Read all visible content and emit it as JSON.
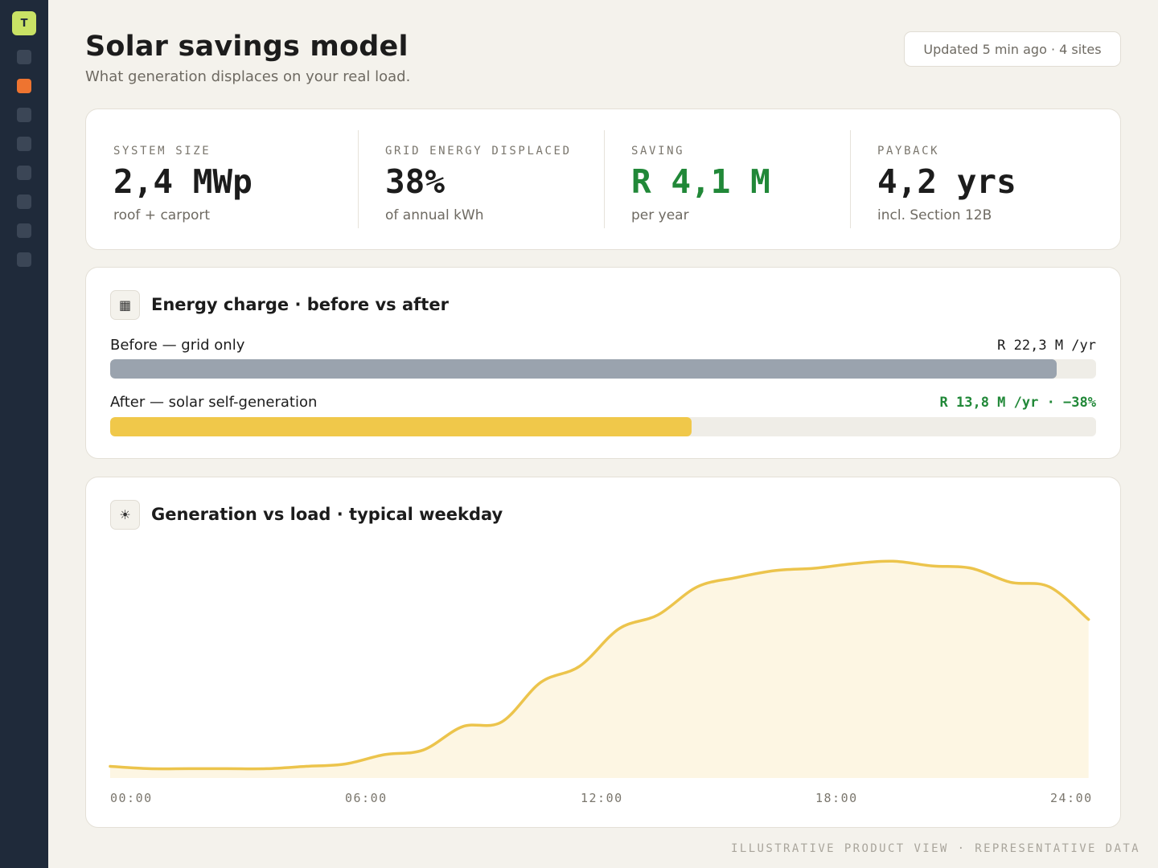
{
  "app": {
    "logo_letter": "T"
  },
  "sidebar": {
    "items": [
      {
        "name": "nav-item-1",
        "active": false
      },
      {
        "name": "nav-item-2",
        "active": true
      },
      {
        "name": "nav-item-3",
        "active": false
      },
      {
        "name": "nav-item-4",
        "active": false
      },
      {
        "name": "nav-item-5",
        "active": false
      },
      {
        "name": "nav-item-6",
        "active": false
      },
      {
        "name": "nav-item-7",
        "active": false
      },
      {
        "name": "nav-item-8",
        "active": false
      }
    ]
  },
  "header": {
    "title": "Solar savings model",
    "subtitle": "What generation displaces on your real load.",
    "status": "Updated 5 min ago · 4 sites"
  },
  "kpis": [
    {
      "label": "SYSTEM SIZE",
      "value": "2,4 MWp",
      "sub": "roof + carport",
      "highlight": false
    },
    {
      "label": "GRID ENERGY DISPLACED",
      "value": "38%",
      "sub": "of annual kWh",
      "highlight": false
    },
    {
      "label": "SAVING",
      "value": "R 4,1 M",
      "sub": "per year",
      "highlight": true
    },
    {
      "label": "PAYBACK",
      "value": "4,2 yrs",
      "sub": "incl. Section 12B",
      "highlight": false
    }
  ],
  "energy_card": {
    "icon": "grid-icon",
    "title": "Energy charge · before vs after",
    "before": {
      "label": "Before — grid only",
      "value": "R 22,3 M /yr",
      "fill_fraction": 0.96,
      "color": "#9aa3ae"
    },
    "after": {
      "label": "After — solar self-generation",
      "value": "R 13,8 M /yr · −38%",
      "fill_fraction": 0.59,
      "color": "#f0c84a"
    }
  },
  "generation_card": {
    "icon": "sun-icon",
    "title": "Generation vs load · typical weekday"
  },
  "chart_data": {
    "type": "area",
    "x_ticks": [
      "00:00",
      "06:00",
      "12:00",
      "18:00",
      "24:00"
    ],
    "x": [
      0,
      1,
      2,
      3,
      4,
      5,
      6,
      7,
      8,
      9,
      10,
      11,
      12,
      13,
      14,
      15,
      16,
      17,
      18,
      19,
      20,
      21,
      22,
      23,
      24,
      25
    ],
    "series": [
      {
        "values": [
          0.05,
          0.04,
          0.04,
          0.04,
          0.04,
          0.05,
          0.06,
          0.1,
          0.12,
          0.22,
          0.24,
          0.41,
          0.48,
          0.64,
          0.7,
          0.82,
          0.86,
          0.89,
          0.9,
          0.92,
          0.93,
          0.91,
          0.9,
          0.84,
          0.82,
          0.68
        ],
        "color": "#ecc44c"
      }
    ],
    "ylim": [
      0,
      1
    ],
    "fill_color": "#fdf6e3"
  },
  "footer": "ILLUSTRATIVE PRODUCT VIEW · REPRESENTATIVE DATA"
}
